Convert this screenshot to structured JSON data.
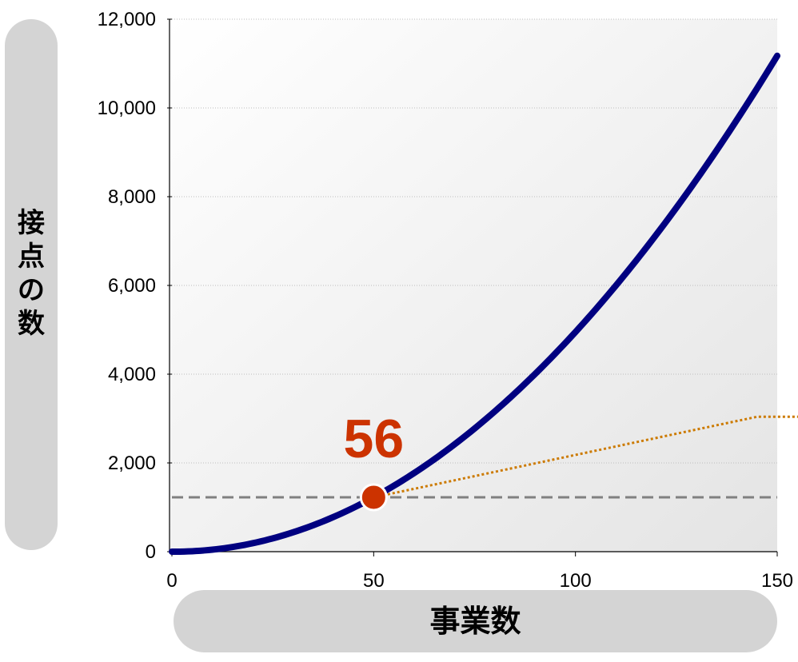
{
  "chart_data": {
    "type": "line",
    "xlabel": "事業数",
    "ylabel": "接点の数",
    "xlim": [
      0,
      150
    ],
    "ylim": [
      0,
      12000
    ],
    "x_ticks": [
      "0",
      "50",
      "100",
      "150"
    ],
    "y_ticks": [
      "0",
      "2,000",
      "4,000",
      "6,000",
      "8,000",
      "10,000",
      "12,000"
    ],
    "grid": "horizontal dotted",
    "series": [
      {
        "name": "",
        "style": "solid navy thick",
        "x": [
          0,
          10,
          20,
          30,
          40,
          50,
          60,
          70,
          80,
          90,
          100,
          110,
          120,
          130,
          140,
          150
        ],
        "y": [
          0,
          45,
          190,
          435,
          780,
          1225,
          1770,
          2415,
          3160,
          4005,
          4950,
          5995,
          7140,
          8385,
          9730,
          11175
        ]
      },
      {
        "name": "",
        "style": "dotted orange",
        "x": [
          50,
          145,
          150
        ],
        "y": [
          1225,
          3040,
          3040
        ]
      },
      {
        "name": "",
        "style": "dashed gray",
        "x": [
          0,
          150
        ],
        "y": [
          1225,
          1225
        ]
      }
    ],
    "marker": {
      "x": 50,
      "y": 1225
    },
    "annotation": "56",
    "colors": {
      "curve": "#000080",
      "trend": "#cc7a00",
      "marker": "#cc3300",
      "reference": "#808080"
    }
  }
}
